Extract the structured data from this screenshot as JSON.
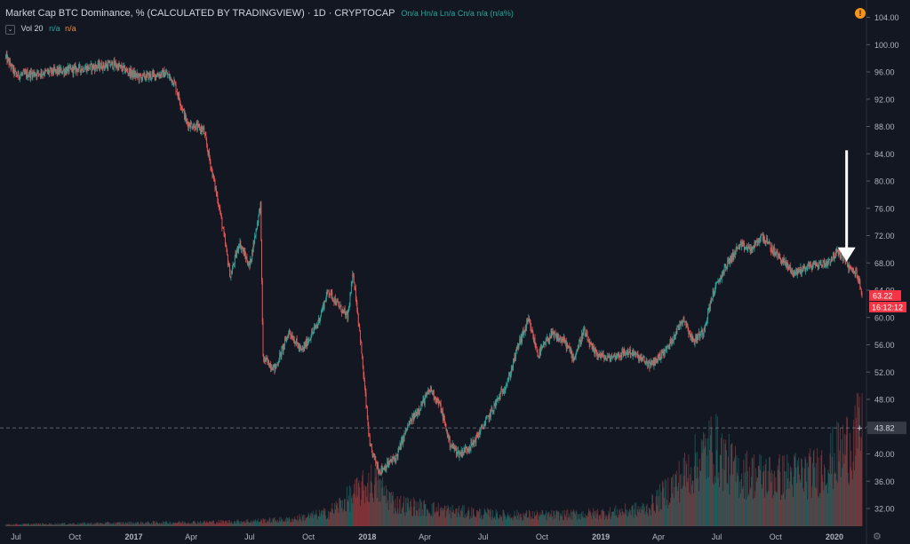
{
  "header": {
    "title": "Market Cap BTC Dominance, % (CALCULATED BY TRADINGVIEW) · 1D · CRYPTOCAP",
    "ohlc": "On/a Hn/a Ln/a Cn/a n/a (n/a%)",
    "volume_label": "Vol 20",
    "volume_v1": "n/a",
    "volume_v2": "n/a",
    "chevron": "⌄",
    "warning": "!"
  },
  "chart_data": {
    "type": "candlestick",
    "title": "Market Cap BTC Dominance, % (CALCULATED BY TRADINGVIEW) · 1D · CRYPTOCAP",
    "y_axis_ticks": [
      "32.00",
      "36.00",
      "40.00",
      "44.00",
      "48.00",
      "52.00",
      "56.00",
      "60.00",
      "64.00",
      "68.00",
      "72.00",
      "76.00",
      "80.00",
      "84.00",
      "88.00",
      "92.00",
      "96.00",
      "100.00",
      "104.00"
    ],
    "ylim": [
      29.4,
      105.5
    ],
    "x_axis_ticks": [
      "Jul",
      "Oct",
      "2017",
      "Apr",
      "Jul",
      "Oct",
      "2018",
      "Apr",
      "Jul",
      "Oct",
      "2019",
      "Apr",
      "Jul",
      "Oct",
      "2020"
    ],
    "x_tick_dates": [
      "2016-07-01",
      "2016-10-01",
      "2017-01-01",
      "2017-04-01",
      "2017-07-01",
      "2017-10-01",
      "2018-01-01",
      "2018-04-01",
      "2018-07-01",
      "2018-10-01",
      "2019-01-01",
      "2019-04-01",
      "2019-07-01",
      "2019-10-01",
      "2020-01-01"
    ],
    "series_keypoints": [
      {
        "date": "2016-06-15",
        "value": 98.2
      },
      {
        "date": "2016-07-01",
        "value": 95.5
      },
      {
        "date": "2016-09-15",
        "value": 96.2
      },
      {
        "date": "2016-12-01",
        "value": 97.1
      },
      {
        "date": "2017-01-10",
        "value": 95.2
      },
      {
        "date": "2017-02-20",
        "value": 95.8
      },
      {
        "date": "2017-03-05",
        "value": 94.5
      },
      {
        "date": "2017-03-25",
        "value": 88.5
      },
      {
        "date": "2017-04-20",
        "value": 87.5
      },
      {
        "date": "2017-05-15",
        "value": 76.0
      },
      {
        "date": "2017-06-01",
        "value": 66.0
      },
      {
        "date": "2017-06-15",
        "value": 71.0
      },
      {
        "date": "2017-07-01",
        "value": 67.5
      },
      {
        "date": "2017-07-18",
        "value": 76.5
      },
      {
        "date": "2017-07-22",
        "value": 54.0
      },
      {
        "date": "2017-08-10",
        "value": 52.5
      },
      {
        "date": "2017-09-01",
        "value": 58.0
      },
      {
        "date": "2017-09-20",
        "value": 55.0
      },
      {
        "date": "2017-10-15",
        "value": 59.0
      },
      {
        "date": "2017-11-01",
        "value": 64.0
      },
      {
        "date": "2017-11-15",
        "value": 62.0
      },
      {
        "date": "2017-12-01",
        "value": 60.0
      },
      {
        "date": "2017-12-10",
        "value": 66.5
      },
      {
        "date": "2017-12-20",
        "value": 58.0
      },
      {
        "date": "2018-01-05",
        "value": 41.0
      },
      {
        "date": "2018-01-20",
        "value": 37.5
      },
      {
        "date": "2018-02-15",
        "value": 39.5
      },
      {
        "date": "2018-03-05",
        "value": 44.0
      },
      {
        "date": "2018-03-25",
        "value": 47.0
      },
      {
        "date": "2018-04-10",
        "value": 49.5
      },
      {
        "date": "2018-04-25",
        "value": 47.0
      },
      {
        "date": "2018-05-10",
        "value": 41.5
      },
      {
        "date": "2018-05-25",
        "value": 40.0
      },
      {
        "date": "2018-06-15",
        "value": 41.5
      },
      {
        "date": "2018-07-10",
        "value": 45.5
      },
      {
        "date": "2018-08-10",
        "value": 51.0
      },
      {
        "date": "2018-08-25",
        "value": 56.0
      },
      {
        "date": "2018-09-10",
        "value": 59.5
      },
      {
        "date": "2018-09-25",
        "value": 54.5
      },
      {
        "date": "2018-10-15",
        "value": 57.5
      },
      {
        "date": "2018-11-05",
        "value": 56.5
      },
      {
        "date": "2018-11-20",
        "value": 54.0
      },
      {
        "date": "2018-12-05",
        "value": 58.0
      },
      {
        "date": "2018-12-20",
        "value": 55.0
      },
      {
        "date": "2019-01-10",
        "value": 54.0
      },
      {
        "date": "2019-02-15",
        "value": 55.0
      },
      {
        "date": "2019-03-20",
        "value": 53.0
      },
      {
        "date": "2019-04-15",
        "value": 55.5
      },
      {
        "date": "2019-05-10",
        "value": 60.0
      },
      {
        "date": "2019-05-25",
        "value": 56.5
      },
      {
        "date": "2019-06-10",
        "value": 58.0
      },
      {
        "date": "2019-06-25",
        "value": 63.5
      },
      {
        "date": "2019-07-15",
        "value": 67.5
      },
      {
        "date": "2019-08-05",
        "value": 70.5
      },
      {
        "date": "2019-08-25",
        "value": 70.0
      },
      {
        "date": "2019-09-10",
        "value": 72.0
      },
      {
        "date": "2019-09-25",
        "value": 70.0
      },
      {
        "date": "2019-10-10",
        "value": 68.5
      },
      {
        "date": "2019-10-30",
        "value": 66.5
      },
      {
        "date": "2019-11-20",
        "value": 67.5
      },
      {
        "date": "2019-12-20",
        "value": 68.0
      },
      {
        "date": "2020-01-05",
        "value": 69.5
      },
      {
        "date": "2020-01-15",
        "value": 69.0
      },
      {
        "date": "2020-01-25",
        "value": 67.0
      },
      {
        "date": "2020-02-05",
        "value": 66.5
      },
      {
        "date": "2020-02-13",
        "value": 63.2
      }
    ],
    "volume_keypoints": [
      {
        "date": "2016-06-15",
        "value": 0.4
      },
      {
        "date": "2017-06-01",
        "value": 1.0
      },
      {
        "date": "2017-09-01",
        "value": 1.5
      },
      {
        "date": "2017-11-01",
        "value": 3.0
      },
      {
        "date": "2017-12-20",
        "value": 8.0
      },
      {
        "date": "2018-01-10",
        "value": 10.0
      },
      {
        "date": "2018-02-15",
        "value": 5.0
      },
      {
        "date": "2018-05-01",
        "value": 3.5
      },
      {
        "date": "2018-08-01",
        "value": 2.5
      },
      {
        "date": "2018-11-01",
        "value": 2.5
      },
      {
        "date": "2019-01-15",
        "value": 3.0
      },
      {
        "date": "2019-03-15",
        "value": 4.0
      },
      {
        "date": "2019-05-01",
        "value": 10.0
      },
      {
        "date": "2019-06-25",
        "value": 18.0
      },
      {
        "date": "2019-08-01",
        "value": 12.0
      },
      {
        "date": "2019-10-01",
        "value": 11.0
      },
      {
        "date": "2019-12-01",
        "value": 12.0
      },
      {
        "date": "2020-01-15",
        "value": 17.0
      },
      {
        "date": "2020-02-13",
        "value": 22.0
      }
    ],
    "last_price_label": "63.22",
    "countdown_label": "16:12:12",
    "crosshair_label": "43.82",
    "crosshair_value": 43.82,
    "annotation": {
      "type": "arrow",
      "color": "#ffffff",
      "x_date": "2020-01-20",
      "from_value": 84.5,
      "to_value": 68.2
    },
    "colors": {
      "up": "#26a69a",
      "down": "#ef5350",
      "background": "#131722",
      "axis_text": "#b2b5be",
      "last_price_bg": "#f23645"
    }
  }
}
